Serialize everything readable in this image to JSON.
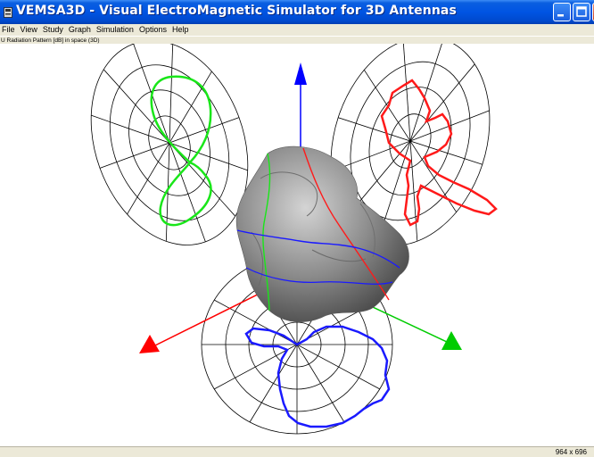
{
  "window": {
    "title": "VEMSA3D - Visual ElectroMagnetic Simulator for 3D Antennas"
  },
  "menu": {
    "items": [
      "File",
      "View",
      "Study",
      "Graph",
      "Simulation",
      "Options",
      "Help"
    ]
  },
  "view": {
    "subtitle": "U Radiation Pattern [dB] in space (3D)"
  },
  "status": {
    "resolution": "964 x 696"
  },
  "colors": {
    "titlebar": "#0054e3",
    "x_axis": "#ff0000",
    "y_axis": "#00cc00",
    "z_axis": "#0000ff",
    "surface": "#8c8c8c"
  }
}
